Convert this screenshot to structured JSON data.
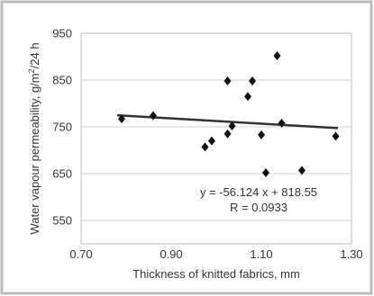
{
  "chart_data": {
    "type": "scatter",
    "xlabel": "Thickness of knitted fabrics, mm",
    "ylabel_main": "Water vapour permeability, g/m",
    "ylabel_sup": "2",
    "ylabel_tail": "/24 h",
    "xlim": [
      0.7,
      1.3
    ],
    "ylim": [
      500,
      950
    ],
    "xticks": [
      "0.70",
      "0.90",
      "1.10",
      "1.30"
    ],
    "xtick_values": [
      0.7,
      0.9,
      1.1,
      1.3
    ],
    "yticks": [
      "550",
      "650",
      "750",
      "850",
      "950"
    ],
    "ytick_values": [
      550,
      650,
      750,
      850,
      950
    ],
    "grid": true,
    "points": [
      {
        "x": 0.79,
        "y": 767
      },
      {
        "x": 0.86,
        "y": 774
      },
      {
        "x": 0.975,
        "y": 707
      },
      {
        "x": 0.99,
        "y": 720
      },
      {
        "x": 1.025,
        "y": 848
      },
      {
        "x": 1.025,
        "y": 735
      },
      {
        "x": 1.035,
        "y": 752
      },
      {
        "x": 1.07,
        "y": 815
      },
      {
        "x": 1.08,
        "y": 848
      },
      {
        "x": 1.1,
        "y": 733
      },
      {
        "x": 1.11,
        "y": 652
      },
      {
        "x": 1.135,
        "y": 902
      },
      {
        "x": 1.145,
        "y": 758
      },
      {
        "x": 1.19,
        "y": 657
      },
      {
        "x": 1.265,
        "y": 730
      }
    ],
    "trendline": {
      "slope": -56.124,
      "intercept": 818.55,
      "x_from": 0.78,
      "x_to": 1.27
    },
    "annotations": {
      "equation": "y = -56.124 x + 818.55",
      "r": "R = 0.0933"
    },
    "colors": {
      "marker": "#111111",
      "trendline": "#333333",
      "grid": "#d0d0d0",
      "frame": "#bdbdbd",
      "plot_bg": "#ffffff"
    }
  }
}
